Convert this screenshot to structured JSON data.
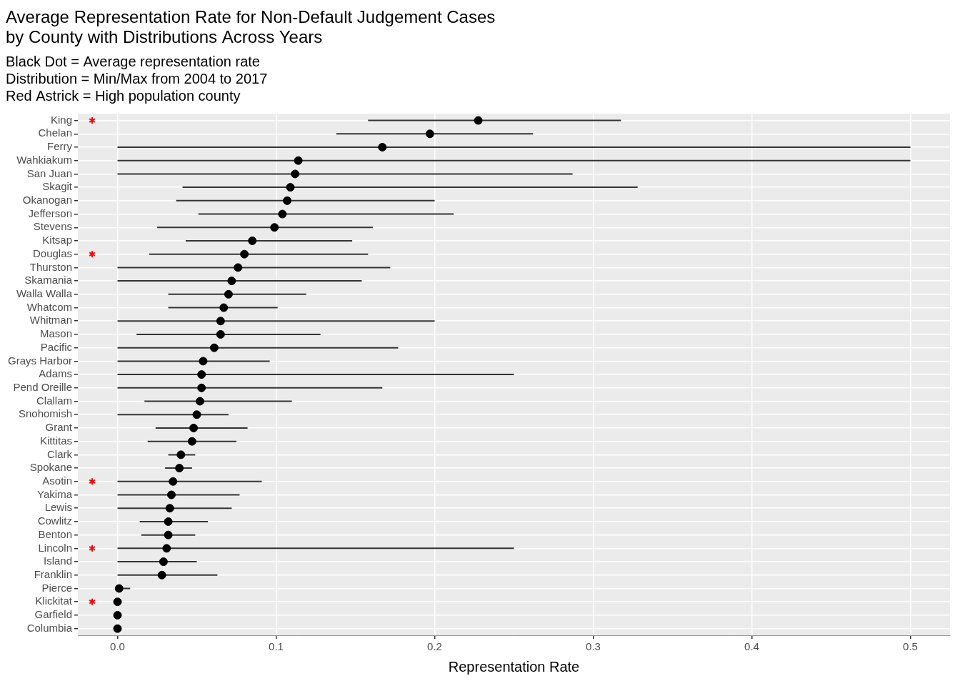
{
  "chart_data": {
    "type": "dot_range",
    "orientation": "horizontal",
    "title": [
      "Average Representation Rate for Non-Default Judgement Cases",
      "by County with Distributions Across Years"
    ],
    "subtitle": [
      "Black Dot = Average representation rate",
      "Distribution = Min/Max from 2004 to 2017",
      "Red Astrick = High population county"
    ],
    "x_label": "Representation Rate",
    "categories": [
      "King",
      "Chelan",
      "Ferry",
      "Wahkiakum",
      "San Juan",
      "Skagit",
      "Okanogan",
      "Jefferson",
      "Stevens",
      "Kitsap",
      "Douglas",
      "Thurston",
      "Skamania",
      "Walla Walla",
      "Whatcom",
      "Whitman",
      "Mason",
      "Pacific",
      "Grays Harbor",
      "Adams",
      "Pend Oreille",
      "Clallam",
      "Snohomish",
      "Grant",
      "Kittitas",
      "Clark",
      "Spokane",
      "Asotin",
      "Yakima",
      "Lewis",
      "Cowlitz",
      "Benton",
      "Lincoln",
      "Island",
      "Franklin",
      "Pierce",
      "Klickitat",
      "Garfield",
      "Columbia"
    ],
    "values": [
      0.2275,
      0.197,
      0.167,
      0.114,
      0.112,
      0.109,
      0.107,
      0.104,
      0.099,
      0.085,
      0.08,
      0.076,
      0.072,
      0.07,
      0.067,
      0.065,
      0.065,
      0.061,
      0.054,
      0.053,
      0.053,
      0.052,
      0.05,
      0.048,
      0.047,
      0.04,
      0.039,
      0.035,
      0.034,
      0.033,
      0.032,
      0.032,
      0.031,
      0.029,
      0.028,
      0.001,
      0,
      0,
      0
    ],
    "min": [
      0.158,
      0.138,
      0,
      0,
      0,
      0.041,
      0.037,
      0.051,
      0.025,
      0.043,
      0.02,
      0,
      0,
      0.032,
      0.032,
      0,
      0.012,
      0,
      0,
      0,
      0,
      0.017,
      0,
      0.024,
      0.019,
      0.032,
      0.03,
      0,
      0,
      0,
      0.014,
      0.015,
      0,
      0,
      0,
      0,
      0,
      0,
      0
    ],
    "max": [
      0.3175,
      0.262,
      0.5,
      0.5,
      0.287,
      0.328,
      0.2,
      0.212,
      0.161,
      0.148,
      0.158,
      0.172,
      0.154,
      0.119,
      0.101,
      0.2,
      0.128,
      0.177,
      0.096,
      0.25,
      0.167,
      0.11,
      0.07,
      0.082,
      0.075,
      0.049,
      0.047,
      0.091,
      0.077,
      0.072,
      0.057,
      0.049,
      0.25,
      0.05,
      0.063,
      0.008,
      0,
      0,
      0
    ],
    "high_population": [
      true,
      false,
      false,
      false,
      false,
      false,
      false,
      false,
      false,
      false,
      true,
      false,
      false,
      false,
      false,
      false,
      false,
      false,
      false,
      false,
      false,
      false,
      false,
      false,
      false,
      false,
      false,
      true,
      false,
      false,
      false,
      false,
      true,
      false,
      false,
      false,
      true,
      false,
      false
    ],
    "color": "#000000",
    "marker": "circle",
    "xlim": [
      -0.025,
      0.525
    ],
    "xticks": [
      {
        "value": 0,
        "label": "0.0"
      },
      0.1,
      0.2,
      0.3,
      0.4,
      0.5
    ],
    "grid": true
  }
}
